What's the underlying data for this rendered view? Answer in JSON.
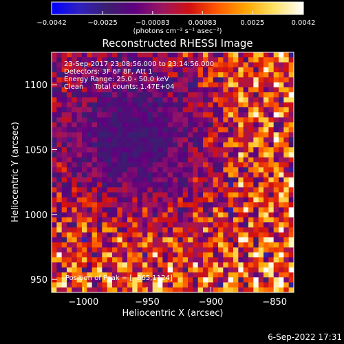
{
  "chart_data": {
    "type": "heatmap",
    "title": "Reconstructed RHESSI Image",
    "xlabel": "Heliocentric X (arcsec)",
    "ylabel": "Heliocentric Y (arcsec)",
    "xlim": [
      -1025,
      -835
    ],
    "ylim": [
      940,
      1125
    ],
    "x_ticks": [
      -1000,
      -950,
      -900,
      -850
    ],
    "x_tick_labels": [
      "−1000",
      "−950",
      "−900",
      "−850"
    ],
    "y_ticks": [
      950,
      1000,
      1050,
      1100
    ],
    "y_tick_labels": [
      "950",
      "1000",
      "1050",
      "1100"
    ],
    "colorbar": {
      "min": -0.0042,
      "max": 0.0042,
      "ticks": [
        -0.0042,
        -0.0025,
        -0.00083,
        0.00083,
        0.0025,
        0.0042
      ],
      "tick_labels": [
        "−0.0042",
        "−0.0025",
        "−0.00083",
        "0.00083",
        "0.0025",
        "0.0042"
      ],
      "unit_label": "(photons cm⁻² s⁻¹ asec⁻²)",
      "colors": [
        "#0000ff",
        "#3020c0",
        "#3a1f6e",
        "#600080",
        "#9c1660",
        "#d21010",
        "#ff5a00",
        "#ffa600",
        "#ffe060",
        "#ffffff"
      ]
    },
    "annotations": [
      "23-Sep-2017 23:08:56.000 to 23:14:56.000",
      "Detectors: 3F 6F 8F, Att 1",
      "Energy Range: 25.0 - 50.0 keV",
      "Clean     Total counts: 1.47E+04"
    ],
    "peak": {
      "x": -865,
      "y": 1124,
      "label": "Position of Peak = [ -865,1124]"
    },
    "grid_size": [
      48,
      48
    ]
  },
  "footer": {
    "date": "6-Sep-2022 17:31"
  }
}
